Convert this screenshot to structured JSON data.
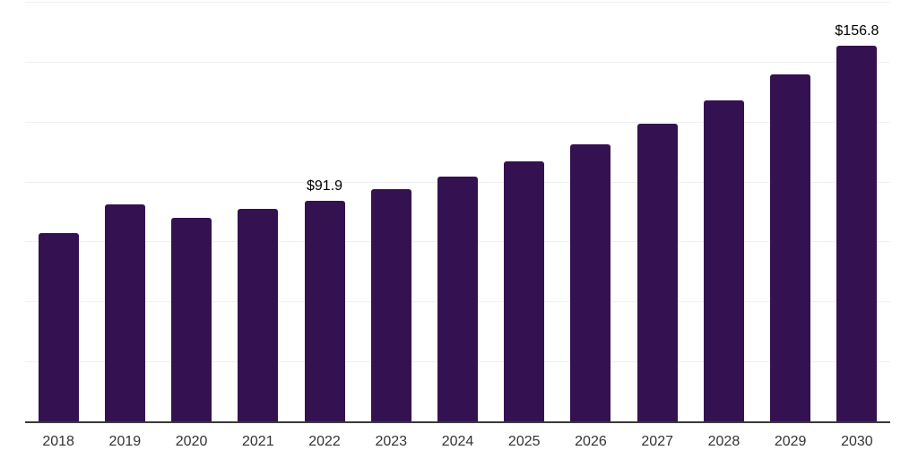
{
  "chart_data": {
    "type": "bar",
    "title": "",
    "xlabel": "",
    "ylabel": "",
    "categories": [
      "2018",
      "2019",
      "2020",
      "2021",
      "2022",
      "2023",
      "2024",
      "2025",
      "2026",
      "2027",
      "2028",
      "2029",
      "2030"
    ],
    "values": [
      78.5,
      90.6,
      85.0,
      88.5,
      91.9,
      96.9,
      102.0,
      108.5,
      115.4,
      124.0,
      133.9,
      144.8,
      156.8
    ],
    "data_labels": {
      "2022": "$91.9",
      "2030": "$156.8"
    },
    "currency_prefix": "$",
    "ylim": [
      0,
      175
    ],
    "gridline_step": 25,
    "grid": "horizontal-only",
    "legend": "none",
    "y_axis_tick_labels": "none",
    "colors": {
      "bar": "#341150",
      "gridline": "#f0f0f0",
      "axis_line": "#3a3a3a",
      "tick_label": "#333333",
      "value_label": "#000000",
      "background": "#ffffff"
    }
  }
}
